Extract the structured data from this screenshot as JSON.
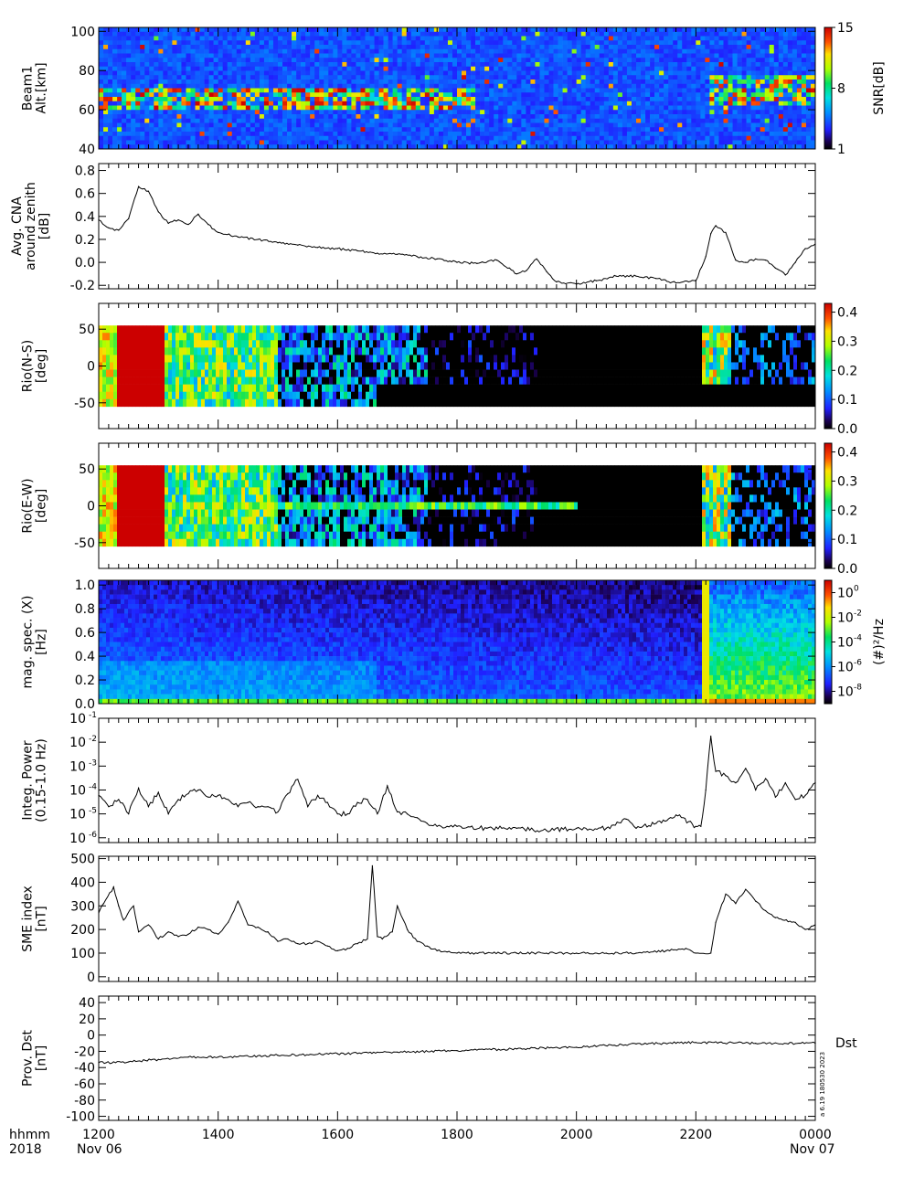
{
  "colors": {
    "line": "#000000",
    "background": "#ffffff",
    "no_data": "#000000"
  },
  "footer": {
    "time_label": "hhmm",
    "year_label": "2018",
    "ticks": [
      "1200",
      "1400",
      "1600",
      "1800",
      "2000",
      "2200",
      "0000"
    ],
    "start_date": "Nov 06",
    "end_date": "Nov 07",
    "version_text": "a  6.19  180530  2023"
  },
  "chart_data": [
    {
      "id": "beam1-snr",
      "type": "heatmap",
      "ylabel": [
        "Beam1",
        "Alt.[km]"
      ],
      "yticks": [
        40,
        60,
        80,
        100
      ],
      "ylim": [
        40,
        102
      ],
      "colorbar": {
        "label": "SNR[dB]",
        "ticks": [
          "1",
          "8",
          "15"
        ],
        "range": [
          1,
          15
        ]
      },
      "features": [
        {
          "from": "1200",
          "to": "1820",
          "alt_km": [
            60,
            72
          ],
          "level_db": [
            8,
            15
          ]
        },
        {
          "from": "2215",
          "to": "2400",
          "alt_km": [
            62,
            78
          ],
          "level_db": [
            8,
            15
          ]
        }
      ]
    },
    {
      "id": "avg-cna",
      "type": "line",
      "ylabel": [
        "Avg. CNA",
        "around zenith",
        "[dB]"
      ],
      "yticks": [
        -0.2,
        0.0,
        0.2,
        0.4,
        0.6,
        0.8
      ],
      "ytick_labels": [
        "-0.2",
        "0.0",
        "0.2",
        "0.4",
        "0.6",
        "0.8"
      ],
      "ylim": [
        -0.23,
        0.86
      ],
      "x": [
        "12:00",
        "12:10",
        "12:20",
        "12:30",
        "12:40",
        "12:50",
        "13:00",
        "13:10",
        "13:20",
        "13:30",
        "13:40",
        "13:50",
        "14:00",
        "14:20",
        "14:40",
        "15:00",
        "15:20",
        "15:40",
        "16:00",
        "16:20",
        "16:40",
        "17:00",
        "17:20",
        "17:40",
        "18:00",
        "18:20",
        "18:40",
        "19:00",
        "19:10",
        "19:20",
        "19:30",
        "19:40",
        "20:00",
        "20:20",
        "20:40",
        "21:00",
        "21:20",
        "21:40",
        "22:00",
        "22:10",
        "22:15",
        "22:20",
        "22:30",
        "22:40",
        "22:50",
        "23:00",
        "23:10",
        "23:20",
        "23:30",
        "23:40",
        "23:50",
        "24:00"
      ],
      "values": [
        0.37,
        0.3,
        0.28,
        0.38,
        0.66,
        0.62,
        0.44,
        0.34,
        0.37,
        0.33,
        0.42,
        0.33,
        0.26,
        0.22,
        0.2,
        0.17,
        0.15,
        0.13,
        0.12,
        0.1,
        0.08,
        0.07,
        0.05,
        0.03,
        0.0,
        -0.01,
        0.02,
        -0.1,
        -0.07,
        0.03,
        -0.08,
        -0.17,
        -0.19,
        -0.16,
        -0.12,
        -0.12,
        -0.14,
        -0.18,
        -0.16,
        0.05,
        0.25,
        0.32,
        0.26,
        0.02,
        0.0,
        0.03,
        0.02,
        -0.05,
        -0.11,
        0.0,
        0.12,
        0.16
      ]
    },
    {
      "id": "rio-ns",
      "type": "heatmap",
      "ylabel": [
        "Rio(N-S)",
        "[deg]"
      ],
      "yticks": [
        -50,
        0,
        50
      ],
      "ylim": [
        -85,
        85
      ],
      "data_extent_deg": [
        -55,
        55
      ],
      "colorbar": {
        "label": "",
        "ticks": [
          "0.0",
          "0.1",
          "0.2",
          "0.3",
          "0.4"
        ],
        "range": [
          0,
          0.43
        ]
      },
      "features": [
        {
          "from": "1220",
          "to": "1305",
          "level": 0.43
        },
        {
          "from": "1305",
          "to": "1500",
          "level": [
            0.15,
            0.35
          ]
        },
        {
          "from": "2205",
          "to": "2250",
          "level": [
            0.15,
            0.3
          ]
        }
      ]
    },
    {
      "id": "rio-ew",
      "type": "heatmap",
      "ylabel": [
        "Rio(E-W)",
        "[deg]"
      ],
      "yticks": [
        -50,
        0,
        50
      ],
      "ylim": [
        -85,
        85
      ],
      "data_extent_deg": [
        -55,
        55
      ],
      "colorbar": {
        "label": "",
        "ticks": [
          "0.0",
          "0.1",
          "0.2",
          "0.3",
          "0.4"
        ],
        "range": [
          0,
          0.43
        ]
      },
      "features": [
        {
          "from": "1220",
          "to": "1305",
          "level": 0.43
        },
        {
          "from": "1305",
          "to": "1500",
          "level": [
            0.15,
            0.35
          ]
        },
        {
          "from": "2210",
          "to": "2240",
          "level": [
            0.2,
            0.4
          ]
        }
      ]
    },
    {
      "id": "mag-spec",
      "type": "heatmap",
      "ylabel": [
        "mag. spec. (X)",
        "[Hz]"
      ],
      "yticks": [
        0.0,
        0.2,
        0.4,
        0.6,
        0.8,
        1.0
      ],
      "ytick_labels": [
        "0.0",
        "0.2",
        "0.4",
        "0.6",
        "0.8",
        "1.0"
      ],
      "ylim": [
        0,
        1.04
      ],
      "colorbar": {
        "label": "(#)²/Hz",
        "ticks": [
          "10",
          "10",
          "10",
          "10",
          "10"
        ],
        "exponents": [
          "-8",
          "-6",
          "-4",
          "-2",
          "0"
        ],
        "log_range": [
          -9,
          1
        ]
      },
      "features": [
        {
          "from": "2205",
          "to": "2400",
          "freq_hz": [
            0,
            0.6
          ],
          "log_power": [
            -5,
            -1
          ]
        }
      ]
    },
    {
      "id": "integ-power",
      "type": "line",
      "scale": "log",
      "ylabel": [
        "Integ. Power",
        "(0.15-1.0 Hz)"
      ],
      "yticks": [
        -6,
        -5,
        -4,
        -3,
        -2,
        -1
      ],
      "ytick_base": "10",
      "ytick_exponents": [
        "-6",
        "-5",
        "-4",
        "-3",
        "-2",
        "-1"
      ],
      "ylim": [
        -6.2,
        -1
      ],
      "x": [
        "12:00",
        "12:10",
        "12:20",
        "12:30",
        "12:40",
        "12:50",
        "13:00",
        "13:10",
        "13:20",
        "13:30",
        "13:40",
        "13:50",
        "14:00",
        "14:10",
        "14:20",
        "14:30",
        "14:40",
        "14:50",
        "15:00",
        "15:10",
        "15:20",
        "15:30",
        "15:40",
        "15:50",
        "16:00",
        "16:10",
        "16:20",
        "16:30",
        "16:40",
        "16:50",
        "17:00",
        "17:10",
        "17:20",
        "17:30",
        "17:40",
        "17:50",
        "18:00",
        "18:30",
        "19:00",
        "19:30",
        "20:00",
        "20:30",
        "20:50",
        "21:00",
        "21:20",
        "21:40",
        "22:00",
        "22:05",
        "22:10",
        "22:15",
        "22:20",
        "22:30",
        "22:40",
        "22:50",
        "23:00",
        "23:10",
        "23:20",
        "23:30",
        "23:40",
        "23:50",
        "24:00"
      ],
      "values": [
        6e-05,
        2e-05,
        4e-05,
        1e-05,
        0.00012,
        2e-05,
        8e-05,
        1e-05,
        4e-05,
        7e-05,
        0.0001,
        5e-05,
        6e-05,
        4e-05,
        2e-05,
        3e-05,
        2e-05,
        2e-05,
        1.2e-05,
        7e-05,
        0.00028,
        2e-05,
        6e-05,
        3e-05,
        1e-05,
        1e-05,
        3e-05,
        4e-05,
        1e-05,
        0.00015,
        1.2e-05,
        1e-05,
        7e-06,
        4e-06,
        3e-06,
        3e-06,
        3e-06,
        2.5e-06,
        2.5e-06,
        2e-06,
        2.5e-06,
        2.5e-06,
        6e-06,
        2.5e-06,
        4e-06,
        9e-06,
        3e-06,
        3e-06,
        0.0001,
        0.018,
        0.0006,
        0.0004,
        0.0002,
        0.0008,
        0.0001,
        0.0003,
        5e-05,
        0.0002,
        4e-05,
        6e-05,
        0.0002
      ]
    },
    {
      "id": "sme-index",
      "type": "line",
      "ylabel": [
        "SME index",
        "[nT]"
      ],
      "yticks": [
        0,
        100,
        200,
        300,
        400,
        500
      ],
      "ytick_labels": [
        "0",
        "100",
        "200",
        "300",
        "400",
        "500"
      ],
      "ylim": [
        -20,
        510
      ],
      "x": [
        "12:00",
        "12:05",
        "12:15",
        "12:20",
        "12:25",
        "12:35",
        "12:40",
        "12:50",
        "13:00",
        "13:10",
        "13:20",
        "13:30",
        "13:40",
        "13:50",
        "14:00",
        "14:10",
        "14:20",
        "14:30",
        "14:40",
        "14:50",
        "15:00",
        "15:10",
        "15:20",
        "15:30",
        "15:40",
        "15:50",
        "16:00",
        "16:10",
        "16:20",
        "16:30",
        "16:35",
        "16:40",
        "16:45",
        "16:55",
        "17:00",
        "17:10",
        "17:20",
        "17:30",
        "17:40",
        "17:50",
        "18:00",
        "18:30",
        "19:00",
        "19:30",
        "20:00",
        "20:30",
        "21:00",
        "21:30",
        "21:50",
        "22:00",
        "22:15",
        "22:20",
        "22:30",
        "22:40",
        "22:50",
        "23:00",
        "23:10",
        "23:20",
        "23:40",
        "23:50",
        "24:00"
      ],
      "values": [
        270,
        310,
        380,
        300,
        240,
        300,
        190,
        220,
        160,
        190,
        170,
        180,
        210,
        200,
        180,
        230,
        320,
        220,
        210,
        190,
        150,
        160,
        140,
        140,
        150,
        130,
        110,
        120,
        140,
        160,
        470,
        170,
        160,
        190,
        300,
        200,
        150,
        130,
        110,
        105,
        100,
        100,
        100,
        100,
        100,
        100,
        100,
        110,
        120,
        100,
        100,
        230,
        350,
        310,
        370,
        320,
        280,
        250,
        230,
        200,
        220
      ]
    },
    {
      "id": "prov-dst",
      "type": "line",
      "ylabel": [
        "Prov. Dst",
        "[nT]"
      ],
      "series_label": "Dst",
      "yticks": [
        -100,
        -80,
        -60,
        -40,
        -20,
        0,
        20,
        40
      ],
      "ytick_labels": [
        "-100",
        "-80",
        "-60",
        "-40",
        "-20",
        "0",
        "20",
        "40"
      ],
      "ylim": [
        -105,
        48
      ],
      "x": [
        "12:00",
        "12:30",
        "13:00",
        "13:30",
        "14:00",
        "15:00",
        "16:00",
        "17:00",
        "18:00",
        "19:00",
        "20:00",
        "21:00",
        "22:00",
        "23:00",
        "24:00"
      ],
      "values": [
        -34,
        -33,
        -30,
        -27,
        -27,
        -25,
        -23,
        -21,
        -19,
        -17,
        -15,
        -11,
        -9,
        -10,
        -10
      ]
    }
  ]
}
